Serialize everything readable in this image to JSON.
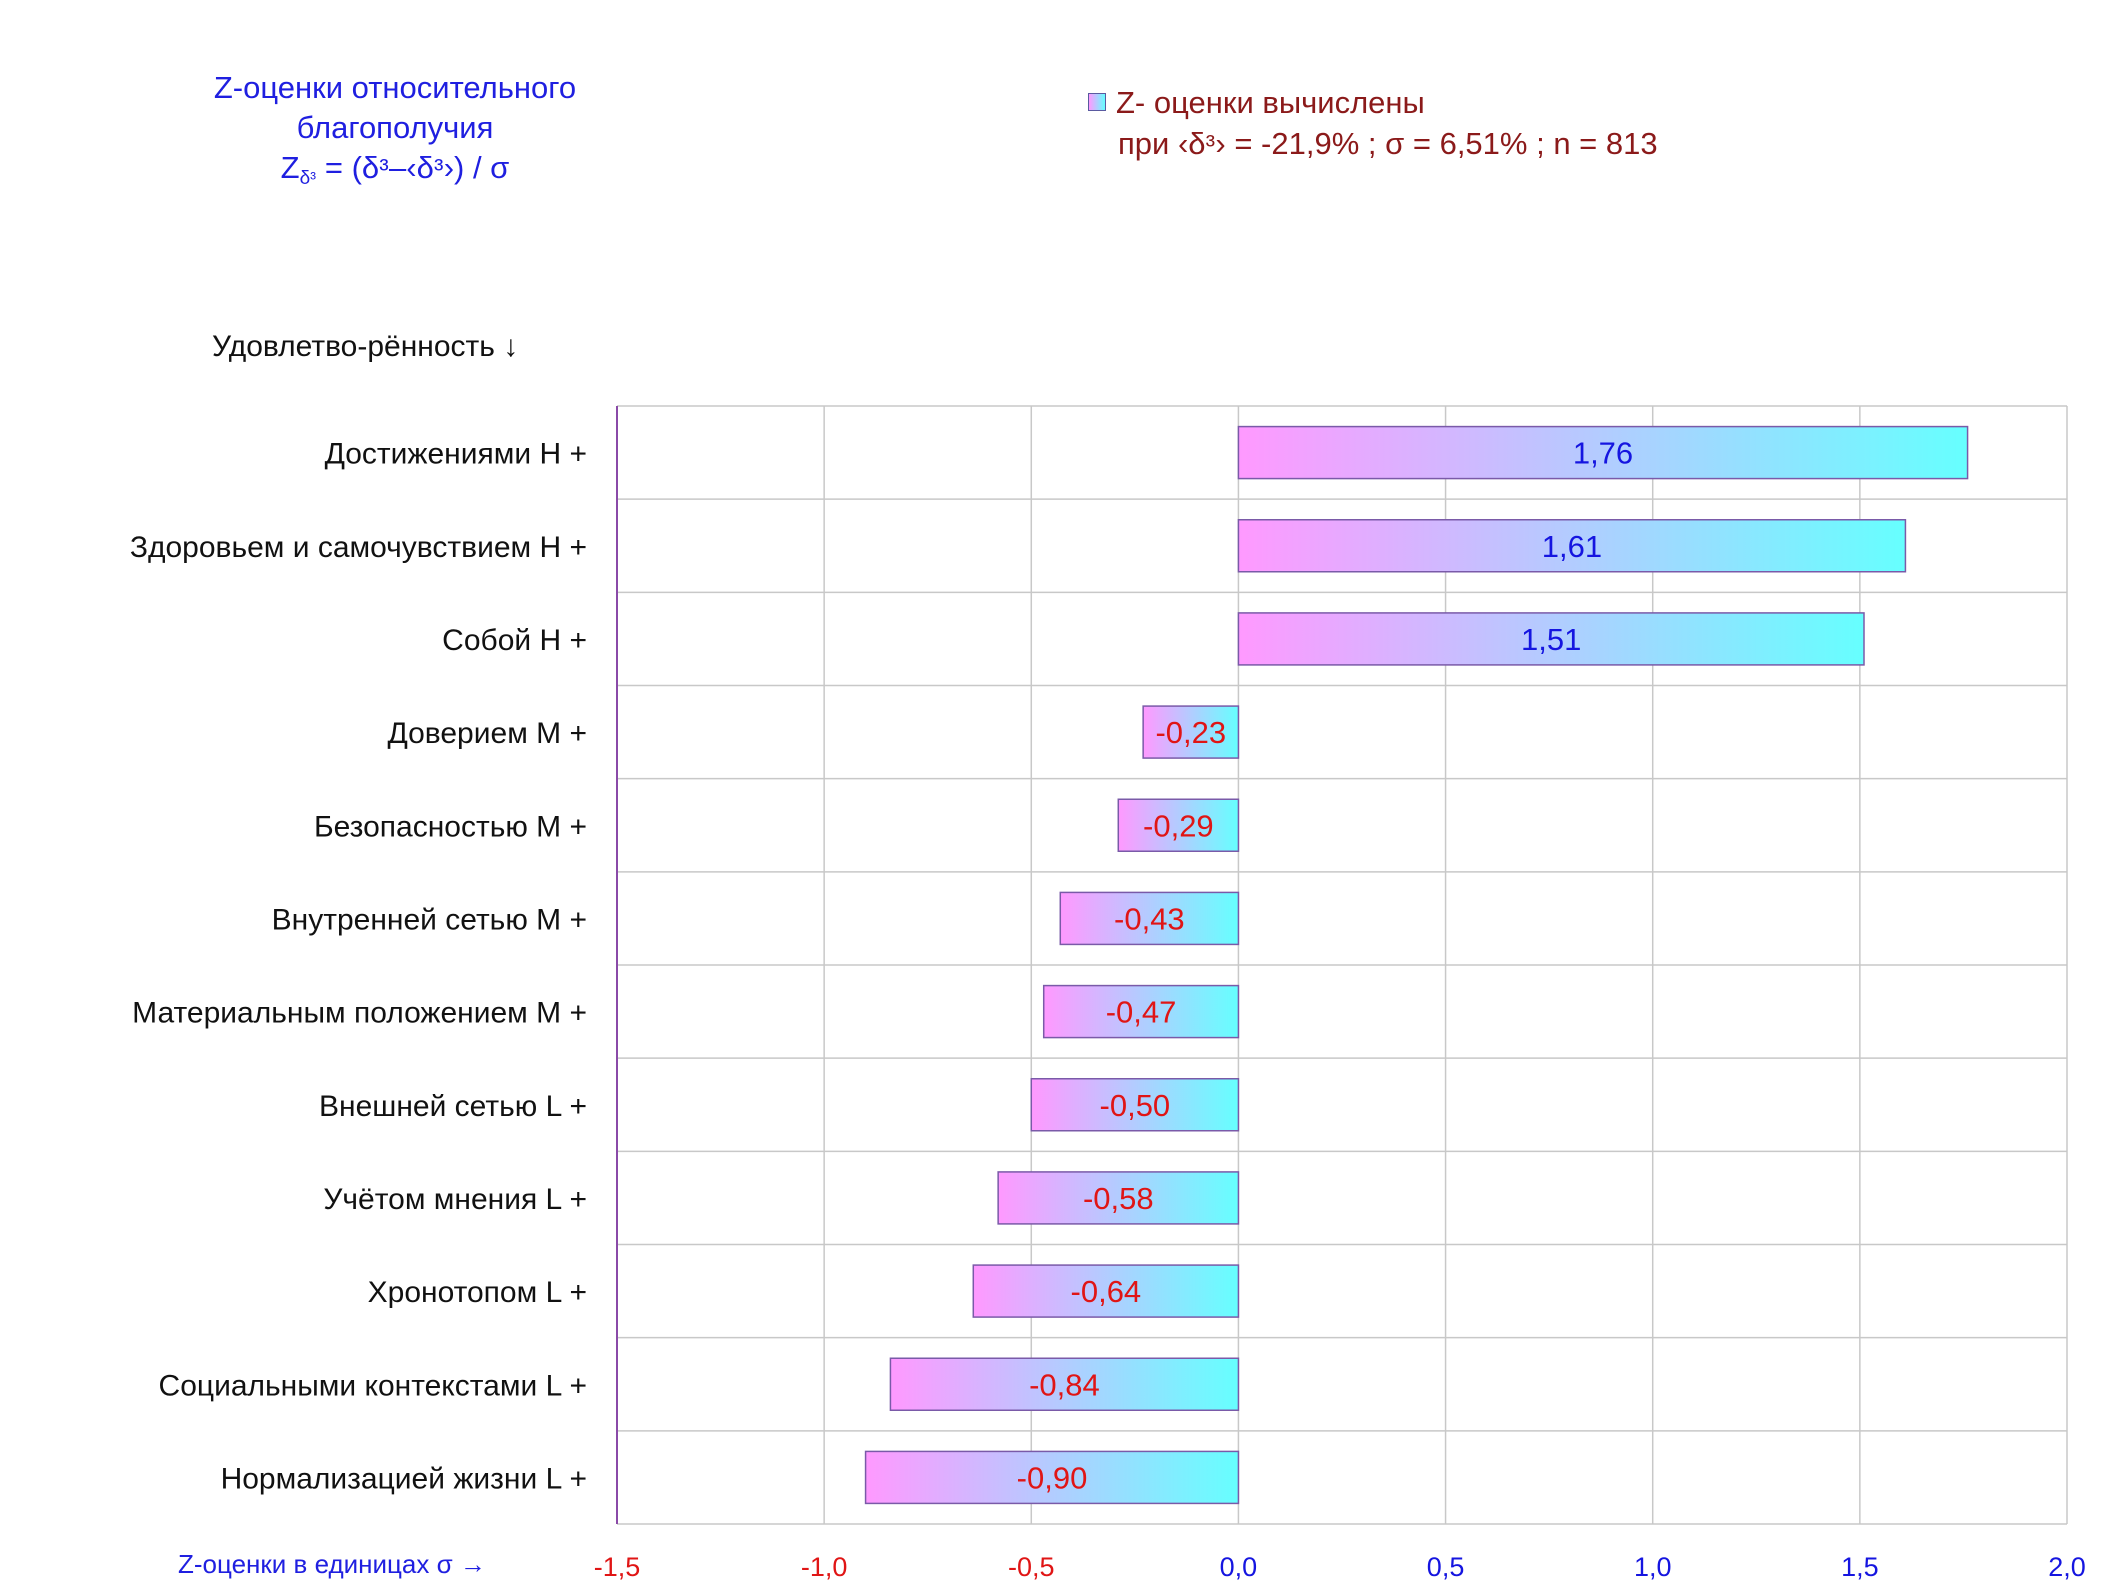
{
  "title": {
    "line1": "Z-оценки  относительного",
    "line2": "благополучия",
    "formula_z": "Z",
    "formula_sub": "δᶟ",
    "formula_rest": " = (δᶟ–‹δᶟ›)  / σ"
  },
  "legend": {
    "label": "Z- оценки вычислены",
    "params": "при ‹δᶟ›  = -21,9% ; σ = 6,51% ; n = 813"
  },
  "y_header": "Удовлетво-рённость ↓",
  "x_header": "Z-оценки в единицах σ →",
  "colors": {
    "bar_left": "#ff99ff",
    "bar_right": "#66ffff",
    "bar_border": "#7a5aa8",
    "positive_label": "#1515e0",
    "negative_label": "#e01515",
    "grid": "#c8c8c8",
    "axis": "#8a4aa8"
  },
  "chart_data": {
    "type": "bar",
    "orientation": "horizontal",
    "categories": [
      "Достижениями  Н +",
      "Здоровьем и самочувствием  Н +",
      "Собой  Н +",
      "Доверием  М +",
      "Безопасностью  М +",
      "Внутренней сетью  М +",
      "Материальным положением  М +",
      "Внешней сетью  L +",
      "Учётом мнения  L +",
      "Хронотопом  L +",
      "Социальными контекстами  L +",
      "Нормализацией жизни  L +"
    ],
    "values": [
      1.76,
      1.61,
      1.51,
      -0.23,
      -0.29,
      -0.43,
      -0.47,
      -0.5,
      -0.58,
      -0.64,
      -0.84,
      -0.9
    ],
    "value_labels": [
      "1,76",
      "1,61",
      "1,51",
      "-0,23",
      "-0,29",
      "-0,43",
      "-0,47",
      "-0,50",
      "-0,58",
      "-0,64",
      "-0,84",
      "-0,90"
    ],
    "xlim": [
      -1.5,
      2.0
    ],
    "xticks": [
      -1.5,
      -1.0,
      -0.5,
      0.0,
      0.5,
      1.0,
      1.5,
      2.0
    ],
    "xtick_labels": [
      "-1,5",
      "-1,0",
      "-0,5",
      "0,0",
      "0,5",
      "1,0",
      "1,5",
      "2,0"
    ],
    "grid": true
  }
}
